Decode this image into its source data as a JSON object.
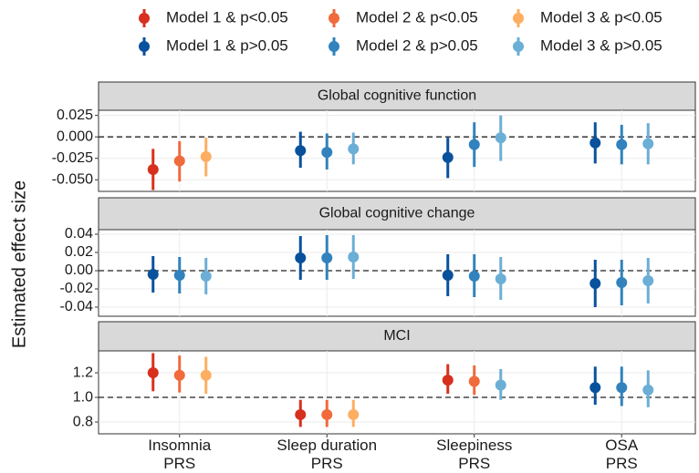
{
  "chart_data": {
    "type": "pointrange",
    "ylabel": "Estimated effect size",
    "categories": [
      "Insomnia\nPRS",
      "Sleep duration\nPRS",
      "Sleepiness\nPRS",
      "OSA\nPRS"
    ],
    "legend": [
      {
        "name": "Model 1 & p<0.05",
        "color": "#d7301f"
      },
      {
        "name": "Model 2 & p<0.05",
        "color": "#f16a3c"
      },
      {
        "name": "Model 3 & p<0.05",
        "color": "#fdae61"
      },
      {
        "name": "Model 1 & p>0.05",
        "color": "#08519c"
      },
      {
        "name": "Model 2 & p>0.05",
        "color": "#3182bd"
      },
      {
        "name": "Model 3 & p>0.05",
        "color": "#6baed6"
      }
    ],
    "grid": true,
    "panels": [
      {
        "title": "Global cognitive function",
        "ylim": [
          -0.0635,
          0.031
        ],
        "reference": 0,
        "yticks": [
          0.025,
          {
            "value": 0,
            "label": "0.000"
          },
          -0.025,
          {
            "value": -0.05,
            "label": "-0.050"
          }
        ],
        "series": [
          {
            "values": [
              -0.038,
              -0.016,
              -0.024,
              -0.007
            ],
            "lower": [
              -0.062,
              -0.036,
              -0.048,
              -0.031
            ],
            "upper": [
              -0.014,
              0.006,
              -0.001,
              0.017
            ],
            "colors": [
              "#d7301f",
              "#08519c",
              "#08519c",
              "#08519c"
            ]
          },
          {
            "values": [
              -0.028,
              -0.018,
              -0.009,
              -0.009
            ],
            "lower": [
              -0.052,
              -0.038,
              -0.035,
              -0.032
            ],
            "upper": [
              -0.005,
              0.004,
              0.017,
              0.014
            ],
            "colors": [
              "#f16a3c",
              "#3182bd",
              "#3182bd",
              "#3182bd"
            ]
          },
          {
            "values": [
              -0.023,
              -0.014,
              -0.001,
              -0.008
            ],
            "lower": [
              -0.046,
              -0.032,
              -0.028,
              -0.032
            ],
            "upper": [
              -0.001,
              0.005,
              0.025,
              0.016
            ],
            "colors": [
              "#fdae61",
              "#6baed6",
              "#6baed6",
              "#6baed6"
            ]
          }
        ]
      },
      {
        "title": "Global cognitive change",
        "ylim": [
          -0.05,
          0.045
        ],
        "reference": 0,
        "yticks": [
          0.04,
          0.02,
          {
            "value": 0,
            "label": "0.00"
          },
          -0.02,
          -0.04
        ],
        "series": [
          {
            "values": [
              -0.004,
              0.014,
              -0.005,
              -0.014
            ],
            "lower": [
              -0.024,
              -0.01,
              -0.028,
              -0.04
            ],
            "upper": [
              0.016,
              0.038,
              0.018,
              0.012
            ],
            "colors": [
              "#08519c",
              "#08519c",
              "#08519c",
              "#08519c"
            ]
          },
          {
            "values": [
              -0.005,
              0.014,
              -0.006,
              -0.013
            ],
            "lower": [
              -0.025,
              -0.01,
              -0.029,
              -0.038
            ],
            "upper": [
              0.015,
              0.039,
              0.018,
              0.012
            ],
            "colors": [
              "#3182bd",
              "#3182bd",
              "#3182bd",
              "#3182bd"
            ]
          },
          {
            "values": [
              -0.006,
              0.015,
              -0.009,
              -0.011
            ],
            "lower": [
              -0.026,
              -0.009,
              -0.032,
              -0.036
            ],
            "upper": [
              0.014,
              0.039,
              0.015,
              0.014
            ],
            "colors": [
              "#6baed6",
              "#6baed6",
              "#6baed6",
              "#6baed6"
            ]
          }
        ]
      },
      {
        "title": "MCI",
        "ylim": [
          0.704,
          1.378
        ],
        "reference": 1,
        "yticks": [
          1.2,
          {
            "value": 1,
            "label": "1.0"
          },
          0.8
        ],
        "series": [
          {
            "values": [
              1.2,
              0.86,
              1.14,
              1.08
            ],
            "lower": [
              1.05,
              0.76,
              1.03,
              0.94
            ],
            "upper": [
              1.36,
              0.98,
              1.27,
              1.25
            ],
            "colors": [
              "#d7301f",
              "#d7301f",
              "#d7301f",
              "#08519c"
            ]
          },
          {
            "values": [
              1.18,
              0.86,
              1.13,
              1.08
            ],
            "lower": [
              1.04,
              0.76,
              1.02,
              0.93
            ],
            "upper": [
              1.34,
              0.98,
              1.26,
              1.25
            ],
            "colors": [
              "#f16a3c",
              "#f16a3c",
              "#f16a3c",
              "#3182bd"
            ]
          },
          {
            "values": [
              1.18,
              0.86,
              1.1,
              1.06
            ],
            "lower": [
              1.03,
              0.76,
              0.98,
              0.92
            ],
            "upper": [
              1.33,
              0.98,
              1.23,
              1.22
            ],
            "colors": [
              "#fdae61",
              "#fdae61",
              "#6baed6",
              "#6baed6"
            ]
          }
        ]
      }
    ]
  }
}
